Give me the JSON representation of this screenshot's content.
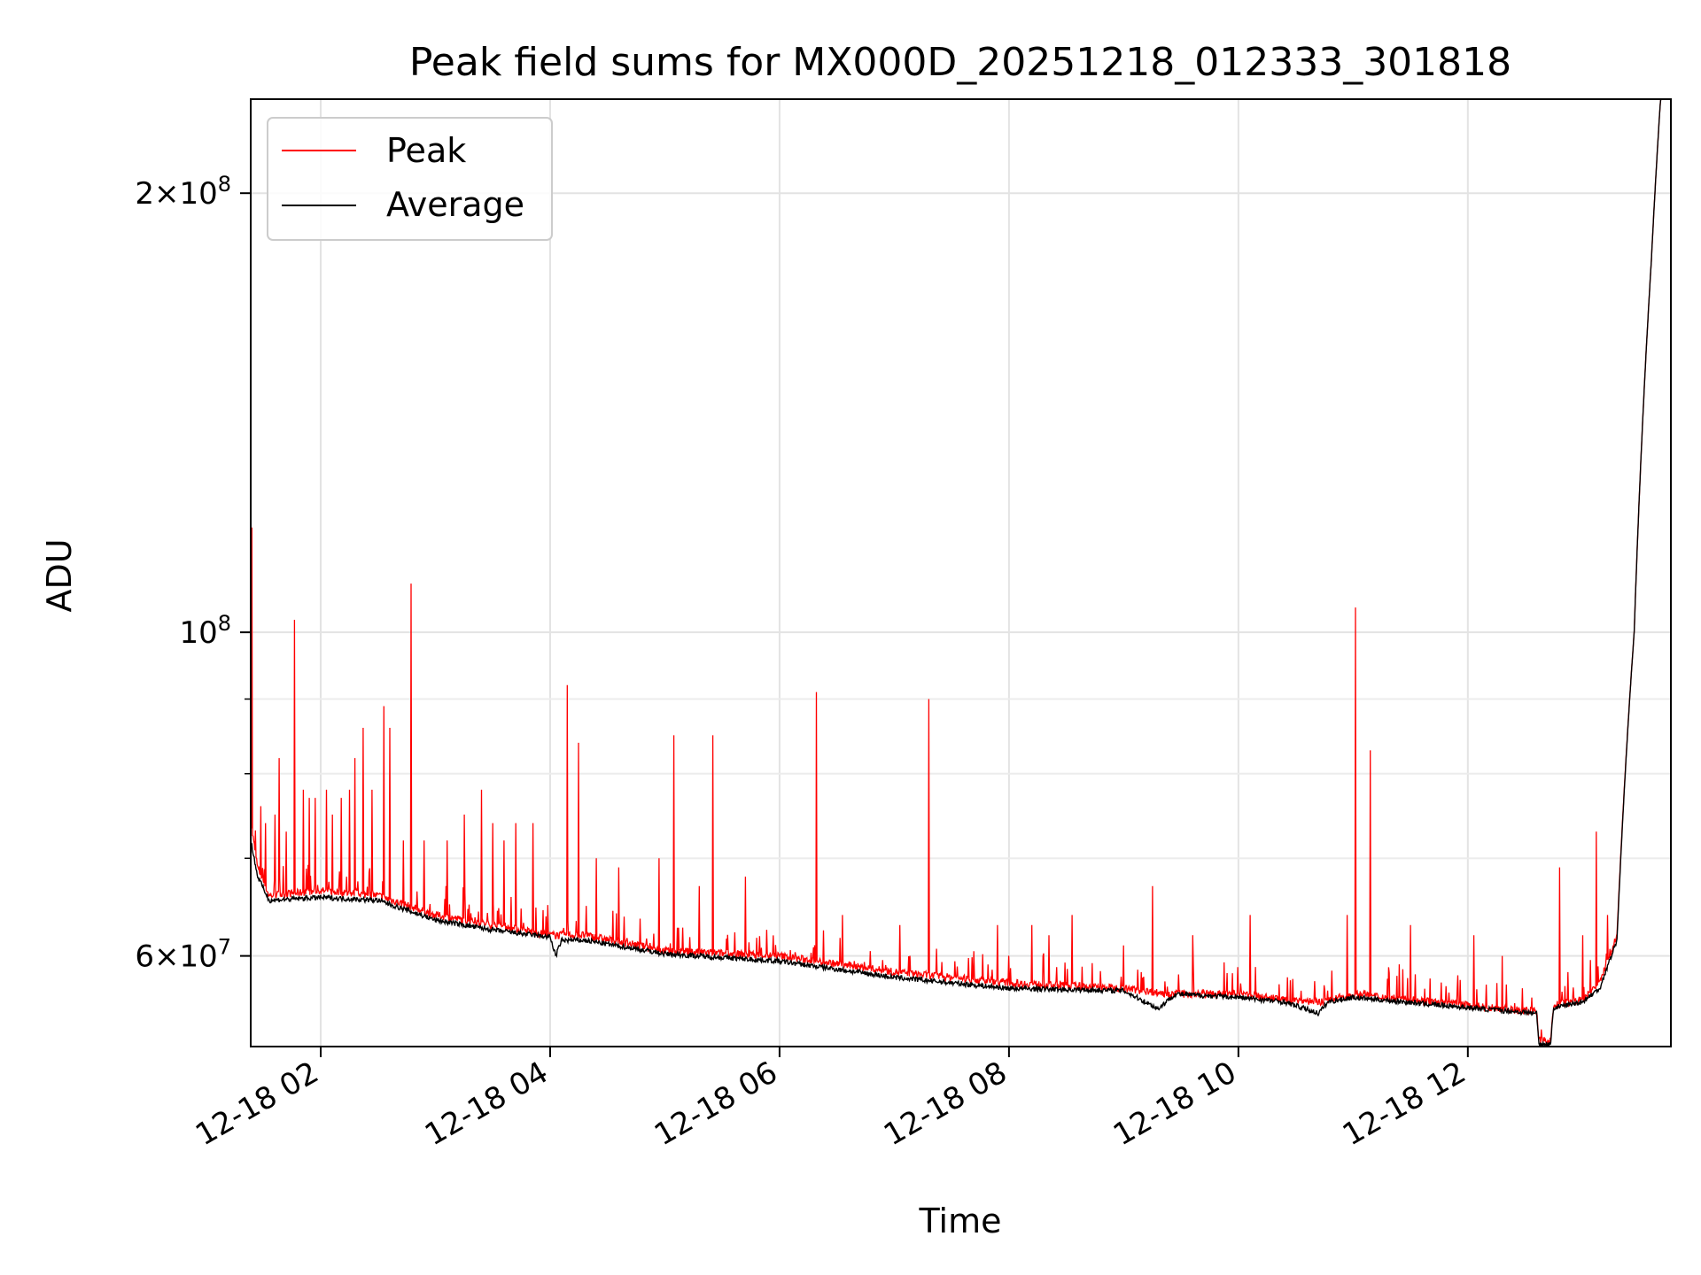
{
  "chart_data": {
    "type": "line",
    "title": "Peak field sums for MX000D_20251218_012333_301818",
    "xlabel": "Time",
    "ylabel": "ADU",
    "yscale": "log",
    "ylim": [
      52000000,
      232000000
    ],
    "xlim_hours": [
      1.39,
      13.77
    ],
    "grid": true,
    "legend_position": "upper-left",
    "x_ticks": [
      {
        "hour": 2,
        "label": "12-18 02"
      },
      {
        "hour": 4,
        "label": "12-18 04"
      },
      {
        "hour": 6,
        "label": "12-18 06"
      },
      {
        "hour": 8,
        "label": "12-18 08"
      },
      {
        "hour": 10,
        "label": "12-18 10"
      },
      {
        "hour": 12,
        "label": "12-18 12"
      }
    ],
    "y_ticks": [
      {
        "value": 60000000,
        "mantissa": "6",
        "exponent": "7"
      },
      {
        "value": 100000000,
        "mantissa": "",
        "exponent": "8"
      },
      {
        "value": 200000000,
        "mantissa": "2",
        "exponent": "8"
      }
    ],
    "y_minor_ticks": [
      70000000,
      80000000,
      90000000
    ],
    "series": [
      {
        "name": "Peak",
        "color": "#ff0000",
        "baseline": [
          [
            1.39,
            74000000
          ],
          [
            1.45,
            69000000
          ],
          [
            1.55,
            66000000
          ],
          [
            2.0,
            66500000
          ],
          [
            2.5,
            66000000
          ],
          [
            3.0,
            64000000
          ],
          [
            3.5,
            63000000
          ],
          [
            4.0,
            62000000
          ],
          [
            4.3,
            62000000
          ],
          [
            5.0,
            60500000
          ],
          [
            6.0,
            60000000
          ],
          [
            7.0,
            58500000
          ],
          [
            8.0,
            57500000
          ],
          [
            9.0,
            57000000
          ],
          [
            9.4,
            56500000
          ],
          [
            10.0,
            56500000
          ],
          [
            10.4,
            56000000
          ],
          [
            10.75,
            55800000
          ],
          [
            11.0,
            56500000
          ],
          [
            12.0,
            55500000
          ],
          [
            12.5,
            55000000
          ],
          [
            12.6,
            55000000
          ],
          [
            12.62,
            52500000
          ],
          [
            12.72,
            52500000
          ],
          [
            12.75,
            55500000
          ],
          [
            13.0,
            56000000
          ],
          [
            13.15,
            57500000
          ],
          [
            13.3,
            62000000
          ],
          [
            13.45,
            100000000
          ],
          [
            13.6,
            180000000
          ],
          [
            13.68,
            232000000
          ],
          [
            13.77,
            232000000
          ]
        ],
        "spikes": [
          [
            1.4,
            118000000
          ],
          [
            1.48,
            76000000
          ],
          [
            1.52,
            74000000
          ],
          [
            1.6,
            75000000
          ],
          [
            1.64,
            82000000
          ],
          [
            1.7,
            73000000
          ],
          [
            1.77,
            102000000
          ],
          [
            1.85,
            78000000
          ],
          [
            1.9,
            77000000
          ],
          [
            1.95,
            77000000
          ],
          [
            2.05,
            78000000
          ],
          [
            2.1,
            75000000
          ],
          [
            2.18,
            77000000
          ],
          [
            2.25,
            78000000
          ],
          [
            2.3,
            82000000
          ],
          [
            2.37,
            86000000
          ],
          [
            2.45,
            78000000
          ],
          [
            2.55,
            89000000
          ],
          [
            2.6,
            86000000
          ],
          [
            2.72,
            72000000
          ],
          [
            2.79,
            108000000
          ],
          [
            2.9,
            72000000
          ],
          [
            3.1,
            72000000
          ],
          [
            3.25,
            75000000
          ],
          [
            3.4,
            78000000
          ],
          [
            3.5,
            74000000
          ],
          [
            3.6,
            72000000
          ],
          [
            3.7,
            74000000
          ],
          [
            3.85,
            74000000
          ],
          [
            4.15,
            92000000
          ],
          [
            4.25,
            84000000
          ],
          [
            4.4,
            70000000
          ],
          [
            4.6,
            69000000
          ],
          [
            4.95,
            70000000
          ],
          [
            5.08,
            85000000
          ],
          [
            5.3,
            67000000
          ],
          [
            5.42,
            85000000
          ],
          [
            5.7,
            68000000
          ],
          [
            6.32,
            91000000
          ],
          [
            6.55,
            64000000
          ],
          [
            7.05,
            63000000
          ],
          [
            7.3,
            90000000
          ],
          [
            7.55,
            59000000
          ],
          [
            7.9,
            63000000
          ],
          [
            8.2,
            63000000
          ],
          [
            8.35,
            62000000
          ],
          [
            8.55,
            64000000
          ],
          [
            9.0,
            61000000
          ],
          [
            9.25,
            67000000
          ],
          [
            9.6,
            62000000
          ],
          [
            10.1,
            64000000
          ],
          [
            10.95,
            64000000
          ],
          [
            11.02,
            104000000
          ],
          [
            11.15,
            83000000
          ],
          [
            11.5,
            63000000
          ],
          [
            12.05,
            62000000
          ],
          [
            12.3,
            60000000
          ],
          [
            12.8,
            69000000
          ],
          [
            13.0,
            62000000
          ],
          [
            13.12,
            73000000
          ],
          [
            13.22,
            64000000
          ]
        ]
      },
      {
        "name": "Average",
        "color": "#000000",
        "points": [
          [
            1.39,
            72000000
          ],
          [
            1.45,
            68000000
          ],
          [
            1.55,
            65500000
          ],
          [
            2.0,
            65800000
          ],
          [
            2.5,
            65500000
          ],
          [
            3.0,
            63500000
          ],
          [
            3.5,
            62500000
          ],
          [
            4.0,
            61800000
          ],
          [
            4.05,
            60000000
          ],
          [
            4.1,
            61500000
          ],
          [
            4.3,
            61500000
          ],
          [
            5.0,
            60200000
          ],
          [
            6.0,
            59500000
          ],
          [
            7.0,
            58000000
          ],
          [
            8.0,
            57000000
          ],
          [
            9.0,
            56800000
          ],
          [
            9.3,
            55200000
          ],
          [
            9.45,
            56500000
          ],
          [
            10.0,
            56200000
          ],
          [
            10.4,
            55800000
          ],
          [
            10.7,
            54800000
          ],
          [
            10.78,
            55800000
          ],
          [
            11.0,
            56200000
          ],
          [
            12.0,
            55300000
          ],
          [
            12.6,
            54800000
          ],
          [
            12.62,
            52200000
          ],
          [
            12.72,
            52200000
          ],
          [
            12.75,
            55300000
          ],
          [
            13.0,
            55800000
          ],
          [
            13.15,
            57000000
          ],
          [
            13.3,
            61500000
          ],
          [
            13.45,
            100000000
          ],
          [
            13.6,
            180000000
          ],
          [
            13.68,
            232000000
          ],
          [
            13.77,
            232000000
          ]
        ]
      }
    ]
  }
}
